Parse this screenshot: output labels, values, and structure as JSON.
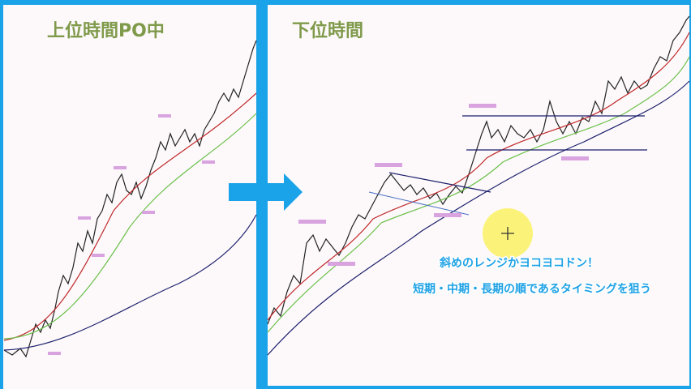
{
  "left_panel": {
    "title": "上位時間PO中"
  },
  "right_panel": {
    "title": "下位時間",
    "notes": [
      "斜めのレンジかヨコヨコドン！",
      "短期・中期・長期の順であるタイミングを狙う"
    ]
  }
}
